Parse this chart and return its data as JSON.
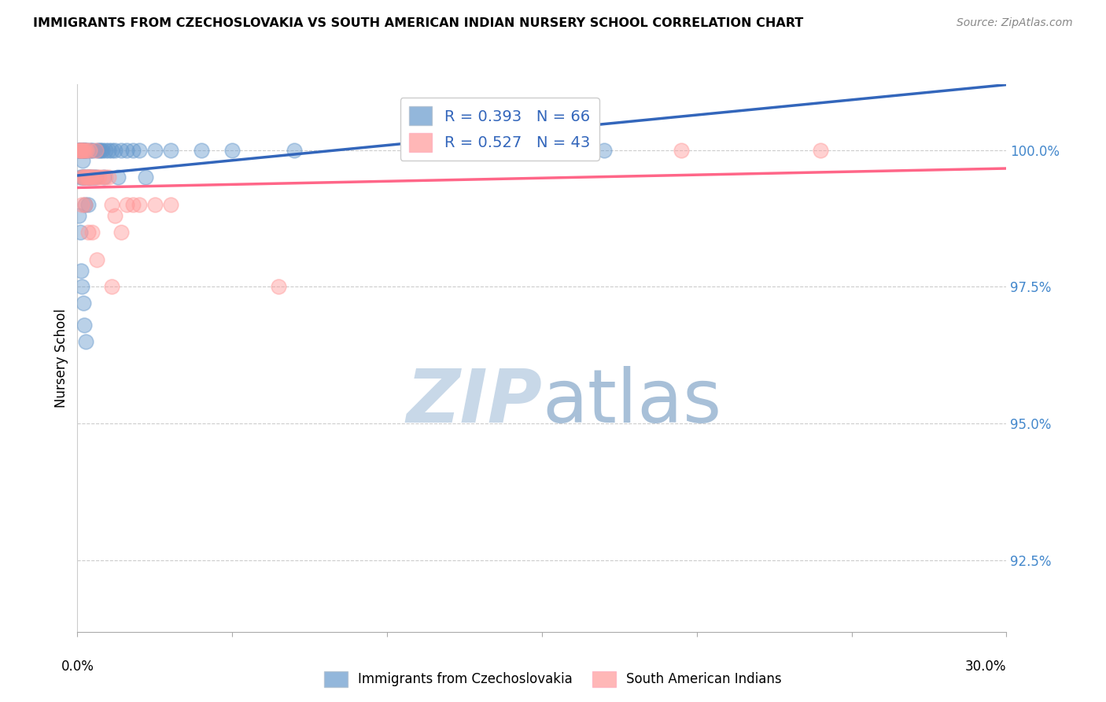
{
  "title": "IMMIGRANTS FROM CZECHOSLOVAKIA VS SOUTH AMERICAN INDIAN NURSERY SCHOOL CORRELATION CHART",
  "source": "Source: ZipAtlas.com",
  "ylabel": "Nursery School",
  "y_ticks": [
    92.5,
    95.0,
    97.5,
    100.0
  ],
  "y_tick_labels": [
    "92.5%",
    "95.0%",
    "97.5%",
    "100.0%"
  ],
  "xlim": [
    0.0,
    30.0
  ],
  "ylim": [
    91.2,
    101.2
  ],
  "blue_R": 0.393,
  "blue_N": 66,
  "pink_R": 0.527,
  "pink_N": 43,
  "blue_color": "#6699CC",
  "pink_color": "#FF9999",
  "blue_line_color": "#3366BB",
  "pink_line_color": "#FF6688",
  "legend_label_blue": "Immigrants from Czechoslovakia",
  "legend_label_pink": "South American Indians",
  "blue_x": [
    0.05,
    0.06,
    0.07,
    0.08,
    0.09,
    0.1,
    0.1,
    0.11,
    0.12,
    0.13,
    0.14,
    0.15,
    0.15,
    0.16,
    0.17,
    0.18,
    0.19,
    0.2,
    0.2,
    0.21,
    0.22,
    0.23,
    0.24,
    0.25,
    0.26,
    0.28,
    0.3,
    0.32,
    0.34,
    0.36,
    0.38,
    0.4,
    0.42,
    0.45,
    0.48,
    0.5,
    0.55,
    0.6,
    0.65,
    0.7,
    0.75,
    0.8,
    0.85,
    0.9,
    1.0,
    1.1,
    1.2,
    1.3,
    1.4,
    1.6,
    1.8,
    2.0,
    2.2,
    2.5,
    3.0,
    4.0,
    5.0,
    0.05,
    0.08,
    0.12,
    0.15,
    0.18,
    0.22,
    0.28,
    7.0,
    17.0
  ],
  "blue_y": [
    100.0,
    100.0,
    100.0,
    100.0,
    100.0,
    100.0,
    99.5,
    100.0,
    100.0,
    100.0,
    100.0,
    100.0,
    99.5,
    100.0,
    99.8,
    100.0,
    99.5,
    100.0,
    99.5,
    100.0,
    100.0,
    99.5,
    99.0,
    100.0,
    99.5,
    100.0,
    100.0,
    99.5,
    99.0,
    99.5,
    99.5,
    100.0,
    99.5,
    100.0,
    99.5,
    100.0,
    99.5,
    99.5,
    100.0,
    100.0,
    100.0,
    100.0,
    99.5,
    100.0,
    100.0,
    100.0,
    100.0,
    99.5,
    100.0,
    100.0,
    100.0,
    100.0,
    99.5,
    100.0,
    100.0,
    100.0,
    100.0,
    98.8,
    98.5,
    97.8,
    97.5,
    97.2,
    96.8,
    96.5,
    100.0,
    100.0
  ],
  "pink_x": [
    0.05,
    0.08,
    0.1,
    0.12,
    0.14,
    0.16,
    0.18,
    0.2,
    0.22,
    0.25,
    0.28,
    0.3,
    0.32,
    0.35,
    0.38,
    0.4,
    0.42,
    0.45,
    0.5,
    0.55,
    0.6,
    0.65,
    0.7,
    0.8,
    0.9,
    1.0,
    1.1,
    1.2,
    1.4,
    1.6,
    1.8,
    2.0,
    2.5,
    3.0,
    0.15,
    0.25,
    0.35,
    0.48,
    0.62,
    1.1,
    6.5,
    19.5,
    24.0
  ],
  "pink_y": [
    100.0,
    100.0,
    100.0,
    100.0,
    99.5,
    100.0,
    99.5,
    100.0,
    99.5,
    100.0,
    99.5,
    100.0,
    99.5,
    99.5,
    99.5,
    100.0,
    99.5,
    99.5,
    99.5,
    99.5,
    100.0,
    99.5,
    99.5,
    99.5,
    99.5,
    99.5,
    99.0,
    98.8,
    98.5,
    99.0,
    99.0,
    99.0,
    99.0,
    99.0,
    99.0,
    99.0,
    98.5,
    98.5,
    98.0,
    97.5,
    97.5,
    100.0,
    100.0
  ]
}
